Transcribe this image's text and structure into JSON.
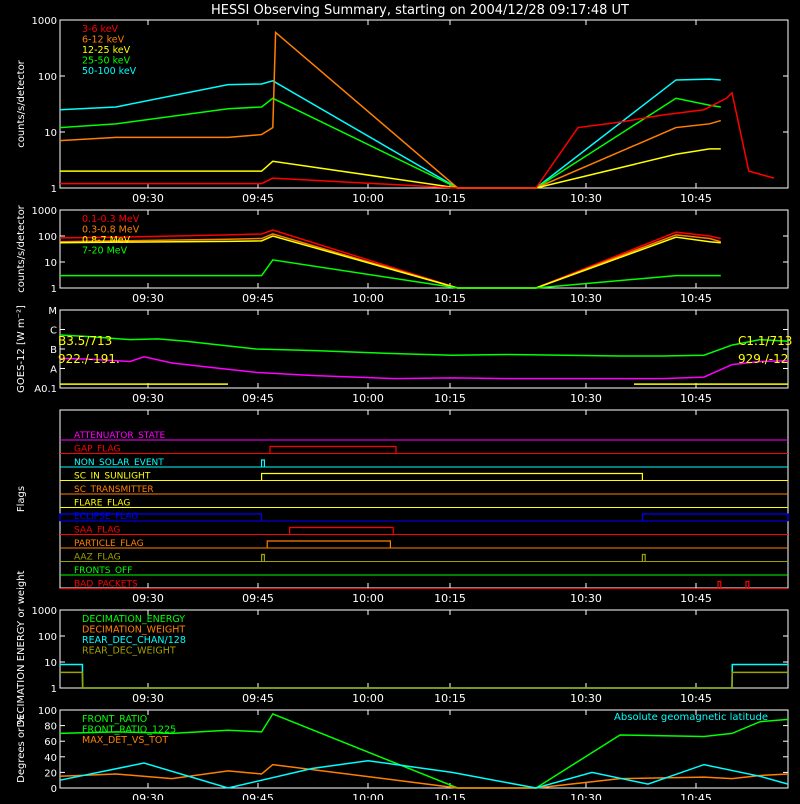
{
  "title": "HESSI Observing Summary, starting on 2004/12/28 09:17:48 UT",
  "time_ticks": [
    "09:30",
    "09:45",
    "10:00",
    "10:15",
    "10:30",
    "10:45"
  ],
  "colors": {
    "bg": "#000000",
    "axis": "#ffffff",
    "red": "#ff0000",
    "orange": "#ff8000",
    "yellow": "#ffff00",
    "green": "#00ff00",
    "cyan": "#00ffff",
    "magenta": "#ff00ff",
    "blue": "#0000ff",
    "olive": "#a0a000",
    "brown": "#ff6a20"
  },
  "chart_data": [
    {
      "id": "xray",
      "type": "line",
      "ylabel": "counts/s/detector",
      "yscale": "log",
      "ylim": [
        1,
        1000
      ],
      "ytick_labels": [
        "1",
        "10",
        "100",
        "1000"
      ],
      "legend": [
        {
          "name": "3-6 keV",
          "color": "#ff0000"
        },
        {
          "name": "6-12 keV",
          "color": "#ff8000"
        },
        {
          "name": "12-25 keV",
          "color": "#ffff00"
        },
        {
          "name": "25-50 keV",
          "color": "#00ff00"
        },
        {
          "name": "50-100 keV",
          "color": "#00ffff"
        }
      ],
      "series": [
        {
          "name": "50-100 keV",
          "color": "#00ffff",
          "x": [
            0,
            20,
            60,
            72,
            76,
            142,
            170,
            220,
            232,
            236
          ],
          "y": [
            25,
            28,
            70,
            72,
            82,
            0.5,
            0.5,
            85,
            88,
            85
          ]
        },
        {
          "name": "25-50 keV",
          "color": "#00ff00",
          "x": [
            0,
            20,
            60,
            72,
            76,
            142,
            170,
            220,
            232,
            236
          ],
          "y": [
            12,
            14,
            26,
            28,
            40,
            0.5,
            0.5,
            40,
            30,
            28
          ]
        },
        {
          "name": "6-12 keV",
          "color": "#ff8000",
          "x": [
            0,
            20,
            60,
            72,
            76,
            77,
            142,
            170,
            220,
            232,
            236
          ],
          "y": [
            7,
            8,
            8,
            9,
            12,
            600,
            0.5,
            0.5,
            12,
            14,
            16
          ]
        },
        {
          "name": "12-25 keV",
          "color": "#ffff00",
          "x": [
            0,
            20,
            60,
            72,
            76,
            142,
            170,
            220,
            232,
            236
          ],
          "y": [
            2,
            2,
            2,
            2,
            3,
            0.5,
            0.5,
            4,
            5,
            5
          ]
        },
        {
          "name": "3-6 keV",
          "color": "#ff0000",
          "x": [
            0,
            20,
            60,
            72,
            76,
            142,
            170,
            185,
            200,
            215,
            230,
            238,
            240,
            246,
            255
          ],
          "y": [
            1.2,
            1.2,
            1.2,
            1.2,
            1.5,
            0.5,
            0.5,
            12,
            15,
            20,
            25,
            40,
            50,
            2,
            1.5
          ]
        }
      ]
    },
    {
      "id": "gamma",
      "type": "line",
      "ylabel": "counts/s/detector",
      "yscale": "log",
      "ylim": [
        1,
        1000
      ],
      "ytick_labels": [
        "1",
        "10",
        "100",
        "1000"
      ],
      "legend": [
        {
          "name": "0.1-0.3 MeV",
          "color": "#ff0000"
        },
        {
          "name": "0.3-0.8 MeV",
          "color": "#ff8000"
        },
        {
          "name": "0.8-7 MeV",
          "color": "#ffff00"
        },
        {
          "name": "7-20 MeV",
          "color": "#00ff00"
        }
      ],
      "series": [
        {
          "name": "0.1-0.3 MeV",
          "color": "#ff0000",
          "x": [
            0,
            20,
            60,
            72,
            76,
            142,
            170,
            220,
            232,
            236
          ],
          "y": [
            85,
            90,
            110,
            120,
            170,
            0.5,
            0.5,
            140,
            100,
            80
          ]
        },
        {
          "name": "0.3-0.8 MeV",
          "color": "#ff8000",
          "x": [
            0,
            20,
            60,
            72,
            76,
            142,
            170,
            220,
            232,
            236
          ],
          "y": [
            60,
            65,
            75,
            80,
            120,
            0.5,
            0.5,
            110,
            80,
            60
          ]
        },
        {
          "name": "0.8-7 MeV",
          "color": "#ffff00",
          "x": [
            0,
            20,
            60,
            72,
            76,
            142,
            170,
            220,
            232,
            236
          ],
          "y": [
            55,
            58,
            62,
            65,
            100,
            0.5,
            0.5,
            90,
            60,
            55
          ]
        },
        {
          "name": "7-20 MeV",
          "color": "#00ff00",
          "x": [
            0,
            20,
            60,
            72,
            76,
            142,
            170,
            220,
            232,
            236
          ],
          "y": [
            3,
            3,
            3,
            3,
            12,
            0.5,
            0.5,
            3,
            3,
            3
          ]
        }
      ]
    },
    {
      "id": "goes",
      "type": "line",
      "ylabel": "GOES-12 [W m⁻²]",
      "yscale": "log",
      "ytick_labels": [
        "A0.1",
        "A",
        "B",
        "C",
        "M"
      ],
      "annotations": {
        "left_top": "B3.5/713",
        "left_bottom": "922./-191.",
        "right_top": "C1.1/713",
        "right_bottom": "929./-12"
      },
      "series": [
        {
          "name": "long channel",
          "color": "#00ff00",
          "x": [
            0,
            10,
            25,
            35,
            45,
            55,
            70,
            90,
            120,
            140,
            160,
            180,
            200,
            215,
            230,
            240,
            250,
            260
          ],
          "y": [
            0.68,
            0.66,
            0.62,
            0.63,
            0.6,
            0.56,
            0.5,
            0.48,
            0.44,
            0.42,
            0.43,
            0.42,
            0.41,
            0.41,
            0.42,
            0.55,
            0.62,
            0.6
          ]
        },
        {
          "name": "short channel",
          "color": "#ff00ff",
          "x": [
            0,
            10,
            25,
            30,
            40,
            55,
            70,
            90,
            120,
            140,
            160,
            180,
            200,
            215,
            230,
            240,
            250,
            260
          ],
          "y": [
            0.38,
            0.37,
            0.34,
            0.4,
            0.32,
            0.26,
            0.2,
            0.16,
            0.12,
            0.13,
            0.12,
            0.12,
            0.12,
            0.12,
            0.14,
            0.3,
            0.34,
            0.35
          ]
        },
        {
          "name": "flag",
          "color": "#ffff00",
          "x": [
            0,
            60
          ],
          "y": [
            0.05,
            0.05
          ]
        },
        {
          "name": "flag2",
          "color": "#ffff00",
          "x": [
            205,
            260
          ],
          "y": [
            0.05,
            0.05
          ]
        }
      ]
    },
    {
      "id": "flags",
      "type": "line",
      "ylabel": "Flags",
      "flags": [
        {
          "name": "ATTENUATOR_STATE",
          "color": "#ff00ff",
          "steps": []
        },
        {
          "name": "GAP_FLAG",
          "color": "#ff0000",
          "steps": [
            [
              75,
              120
            ]
          ]
        },
        {
          "name": "NON_SOLAR_EVENT",
          "color": "#00ffff",
          "steps": [
            [
              72,
              73
            ]
          ]
        },
        {
          "name": "SC_IN_SUNLIGHT",
          "color": "#ffff00",
          "steps": [
            [
              72,
              208
            ]
          ]
        },
        {
          "name": "SC_TRANSMITTER",
          "color": "#ff8000",
          "steps": []
        },
        {
          "name": "FLARE_FLAG",
          "color": "#ffff00",
          "steps": []
        },
        {
          "name": "ECLIPSE_FLAG",
          "color": "#0000ff",
          "steps": [
            [
              0,
              72
            ],
            [
              208,
              260
            ]
          ]
        },
        {
          "name": "SAA_FLAG",
          "color": "#ff0000",
          "steps": [
            [
              82,
              119
            ]
          ]
        },
        {
          "name": "PARTICLE_FLAG",
          "color": "#ff8000",
          "steps": [
            [
              74,
              118
            ]
          ]
        },
        {
          "name": "AAZ_FLAG",
          "color": "#a0a000",
          "steps": [
            [
              72,
              73
            ],
            [
              208,
              209
            ]
          ]
        },
        {
          "name": "FRONTS_OFF",
          "color": "#00ff00",
          "steps": []
        },
        {
          "name": "BAD_PACKETS",
          "color": "#ff0000",
          "steps": [
            [
              235,
              236
            ],
            [
              245,
              246
            ]
          ]
        }
      ]
    },
    {
      "id": "decimation",
      "type": "line",
      "ylabel": "DECIMATION ENERGY or weight",
      "yscale": "log",
      "ylim": [
        1,
        1000
      ],
      "ytick_labels": [
        "1",
        "10",
        "100",
        "1000"
      ],
      "legend": [
        {
          "name": "DECIMATION_ENERGY",
          "color": "#00ff00"
        },
        {
          "name": "DECIMATION_WEIGHT",
          "color": "#ff8000"
        },
        {
          "name": "REAR_DEC_CHAN/128",
          "color": "#00ffff"
        },
        {
          "name": "REAR_DEC_WEIGHT",
          "color": "#a0a000"
        }
      ],
      "series": [
        {
          "name": "REAR_DEC_CHAN/128",
          "color": "#00ffff",
          "x": [
            0,
            8,
            8.1,
            240,
            240.1,
            260
          ],
          "y": [
            8,
            8,
            1,
            1,
            8,
            8
          ]
        },
        {
          "name": "REAR_DEC_WEIGHT",
          "color": "#a0a000",
          "x": [
            0,
            8,
            8.1,
            240,
            240.1,
            260
          ],
          "y": [
            4,
            4,
            1,
            1,
            4,
            4
          ]
        }
      ]
    },
    {
      "id": "ratios",
      "type": "line",
      "ylabel": "Degrees or %",
      "ylim": [
        0,
        100
      ],
      "ytick_labels": [
        "0",
        "20",
        "40",
        "60",
        "80",
        "100"
      ],
      "legend": [
        {
          "name": "FRONT_RATIO",
          "color": "#00ff00"
        },
        {
          "name": "FRONT_RATIO_1225",
          "color": "#00ff00"
        },
        {
          "name": "MAX_DET_VS_TOT",
          "color": "#ff8000"
        }
      ],
      "right_label": "Absolute geomagnetic latitude",
      "series": [
        {
          "name": "FRONT_RATIO",
          "color": "#00ff00",
          "x": [
            0,
            20,
            40,
            60,
            72,
            76,
            142,
            170,
            200,
            230,
            240,
            250,
            260
          ],
          "y": [
            70,
            72,
            70,
            74,
            72,
            95,
            0,
            0,
            68,
            66,
            70,
            85,
            88
          ]
        },
        {
          "name": "MAX_DET_VS_TOT",
          "color": "#ff8000",
          "x": [
            0,
            20,
            40,
            60,
            72,
            76,
            142,
            170,
            200,
            230,
            240,
            250,
            260
          ],
          "y": [
            15,
            18,
            12,
            22,
            18,
            30,
            0,
            0,
            12,
            14,
            12,
            16,
            18
          ]
        },
        {
          "name": "Absolute geomagnetic latitude",
          "color": "#00ffff",
          "x": [
            0,
            30,
            60,
            90,
            110,
            140,
            170,
            190,
            210,
            230,
            250,
            260
          ],
          "y": [
            10,
            32,
            0,
            25,
            35,
            20,
            0,
            20,
            5,
            30,
            15,
            5
          ]
        }
      ]
    }
  ]
}
